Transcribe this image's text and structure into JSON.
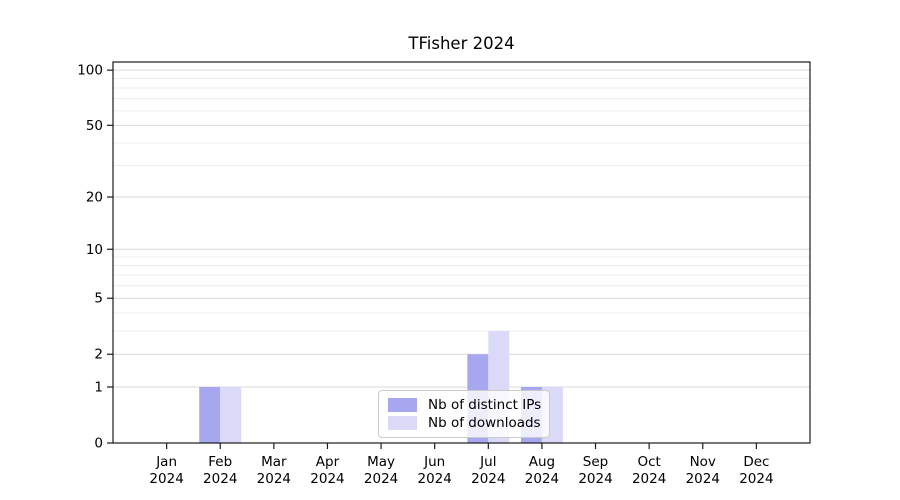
{
  "chart_data": {
    "type": "bar",
    "title": "TFisher 2024",
    "months": [
      "Jan",
      "Feb",
      "Mar",
      "Apr",
      "May",
      "Jun",
      "Jul",
      "Aug",
      "Sep",
      "Oct",
      "Nov",
      "Dec"
    ],
    "year": "2024",
    "series": [
      {
        "name": "Nb of distinct IPs",
        "color": "#a7a7f0",
        "values": [
          0,
          1,
          0,
          0,
          0,
          0,
          2,
          1,
          0,
          0,
          0,
          0
        ]
      },
      {
        "name": "Nb of downloads",
        "color": "#dadaf8",
        "values": [
          0,
          1,
          0,
          0,
          0,
          0,
          3,
          1,
          0,
          0,
          0,
          0
        ]
      }
    ],
    "yscale": "log1p",
    "ylim": [
      0,
      110.7
    ],
    "yticks": [
      0,
      1,
      2,
      5,
      10,
      20,
      50,
      100
    ],
    "yticks_minor": [
      3,
      4,
      6,
      7,
      8,
      9,
      30,
      40,
      60,
      70,
      80,
      90
    ],
    "grid": true,
    "legend_position": "lower center",
    "colors": {
      "frame": "#1a1a1a",
      "grid_major": "#d9d9d9",
      "grid_minor": "#ececec",
      "tick_text": "#000000"
    }
  }
}
